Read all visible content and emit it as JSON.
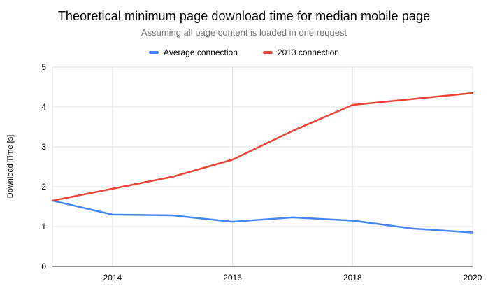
{
  "chart_data": {
    "type": "line",
    "title": "Theoretical minimum page download time for median mobile page",
    "subtitle": "Assuming all page content is loaded in one request",
    "ylabel": "Download Time [s]",
    "xlabel": "",
    "x": [
      2013,
      2014,
      2015,
      2016,
      2017,
      2018,
      2019,
      2020
    ],
    "series": [
      {
        "name": "Average connection",
        "color": "#4285f4",
        "values": [
          1.65,
          1.3,
          1.28,
          1.12,
          1.23,
          1.15,
          0.95,
          0.85
        ]
      },
      {
        "name": "2013 connection",
        "color": "#ea4335",
        "values": [
          1.65,
          1.95,
          2.25,
          2.68,
          3.4,
          4.05,
          4.2,
          4.35
        ]
      }
    ],
    "ylim": [
      0,
      5
    ],
    "yticks": [
      0,
      1,
      2,
      3,
      4,
      5
    ],
    "xticks": [
      2014,
      2016,
      2018,
      2020
    ],
    "grid": true,
    "legend_position": "top",
    "colors": {
      "gridline": "#e3e3e3",
      "axis_baseline": "#333333",
      "subtitle_text": "#757575"
    }
  }
}
